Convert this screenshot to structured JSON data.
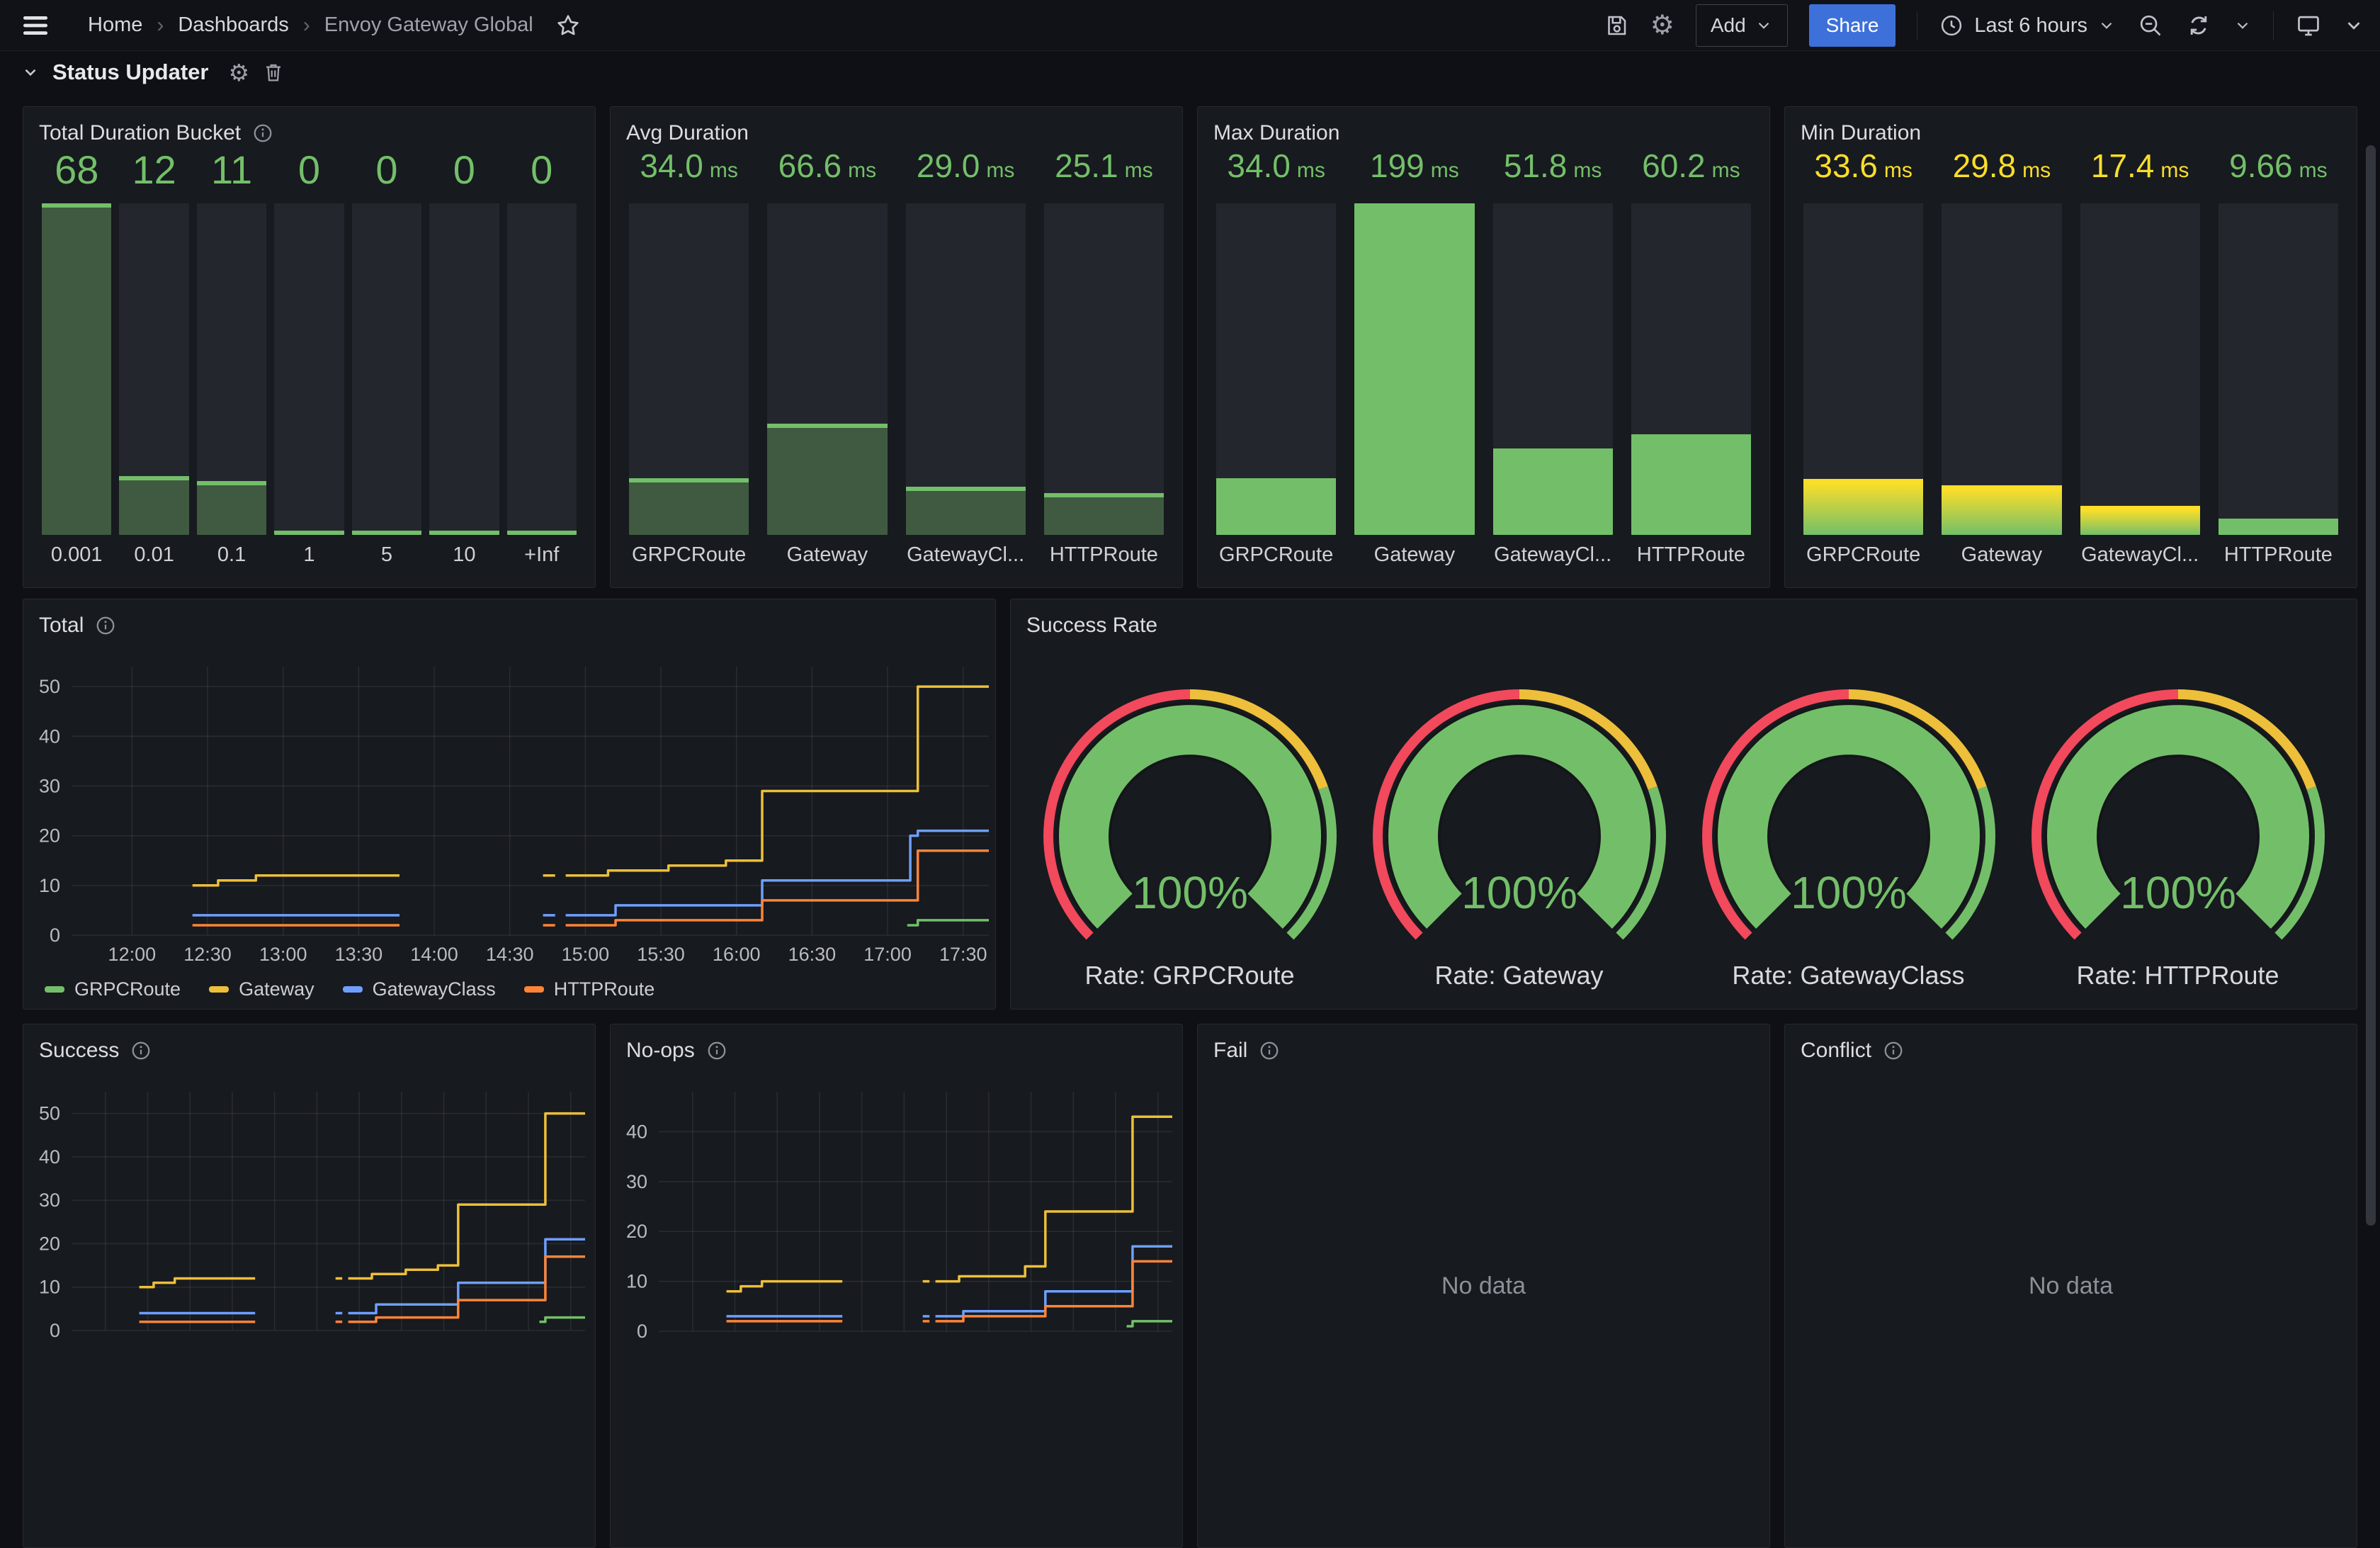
{
  "nav": {
    "breadcrumb": [
      "Home",
      "Dashboards",
      "Envoy Gateway Global"
    ],
    "separator": "›",
    "add": "Add",
    "share": "Share",
    "time_range": "Last 6 hours"
  },
  "row": {
    "title": "Status Updater"
  },
  "panels": {
    "bucket": {
      "title": "Total Duration Bucket"
    },
    "avg": {
      "title": "Avg Duration"
    },
    "max": {
      "title": "Max Duration"
    },
    "min": {
      "title": "Min Duration"
    },
    "total": {
      "title": "Total"
    },
    "rate": {
      "title": "Success Rate"
    },
    "success": {
      "title": "Success"
    },
    "noops": {
      "title": "No-ops"
    },
    "fail": {
      "title": "Fail",
      "no_data": "No data"
    },
    "conflict": {
      "title": "Conflict",
      "no_data": "No data"
    }
  },
  "colors": {
    "green": "#73BF69",
    "dark_green": "#3F5A41",
    "yellow": "#FADE2A",
    "gold": "#EDBF3A",
    "blue": "#6E9FFF",
    "orange": "#FF8438",
    "red": "#F2495C",
    "grid": "rgba(204,204,220,0.10)",
    "tick": "#b9bbc2",
    "accent_button": "#3D71D9"
  },
  "chart_data": [
    {
      "id": "bucket",
      "type": "bar",
      "title": "Total Duration Bucket",
      "categories": [
        "0.001",
        "0.01",
        "0.1",
        "1",
        "5",
        "10",
        "+Inf"
      ],
      "values": [
        68,
        12,
        11,
        0,
        0,
        0,
        0
      ],
      "display": [
        "68",
        "12",
        "11",
        "0",
        "0",
        "0",
        "0"
      ],
      "unit": "",
      "max": 68,
      "ylim": [
        0,
        68
      ],
      "styles": [
        "dark",
        "dark",
        "dark",
        "dark",
        "dark",
        "dark",
        "dark"
      ],
      "value_colors": [
        "green",
        "green",
        "green",
        "green",
        "green",
        "green",
        "green"
      ]
    },
    {
      "id": "avg",
      "type": "bar",
      "title": "Avg Duration",
      "categories": [
        "GRPCRoute",
        "Gateway",
        "GatewayCl...",
        "HTTPRoute"
      ],
      "values": [
        34.0,
        66.6,
        29.0,
        25.1
      ],
      "display": [
        "34.0",
        "66.6",
        "29.0",
        "25.1"
      ],
      "unit": "ms",
      "max": 199,
      "ylim": [
        0,
        199
      ],
      "styles": [
        "dark",
        "dark",
        "dark",
        "dark"
      ],
      "value_colors": [
        "green",
        "green",
        "green",
        "green"
      ]
    },
    {
      "id": "max",
      "type": "bar",
      "title": "Max Duration",
      "categories": [
        "GRPCRoute",
        "Gateway",
        "GatewayCl...",
        "HTTPRoute"
      ],
      "values": [
        34.0,
        199,
        51.8,
        60.2
      ],
      "display": [
        "34.0",
        "199",
        "51.8",
        "60.2"
      ],
      "unit": "ms",
      "max": 199,
      "ylim": [
        0,
        199
      ],
      "styles": [
        "solid",
        "solid",
        "solid",
        "solid"
      ],
      "value_colors": [
        "green",
        "green",
        "green",
        "green"
      ]
    },
    {
      "id": "min",
      "type": "bar",
      "title": "Min Duration",
      "categories": [
        "GRPCRoute",
        "Gateway",
        "GatewayCl...",
        "HTTPRoute"
      ],
      "values": [
        33.6,
        29.8,
        17.4,
        9.66
      ],
      "display": [
        "33.6",
        "29.8",
        "17.4",
        "9.66"
      ],
      "unit": "ms",
      "max": 199,
      "ylim": [
        0,
        199
      ],
      "styles": [
        "gradient",
        "gradient",
        "gradient",
        "solid"
      ],
      "value_colors": [
        "yellow",
        "yellow",
        "yellow",
        "green"
      ]
    },
    {
      "id": "total",
      "type": "line",
      "title": "Total",
      "x_range": [
        11.6,
        17.67
      ],
      "y_range": [
        0,
        54
      ],
      "y_ticks": [
        0,
        10,
        20,
        30,
        40,
        50
      ],
      "x_ticks": [
        {
          "t": 12.0,
          "label": "12:00"
        },
        {
          "t": 12.5,
          "label": "12:30"
        },
        {
          "t": 13.0,
          "label": "13:00"
        },
        {
          "t": 13.5,
          "label": "13:30"
        },
        {
          "t": 14.0,
          "label": "14:00"
        },
        {
          "t": 14.5,
          "label": "14:30"
        },
        {
          "t": 15.0,
          "label": "15:00"
        },
        {
          "t": 15.5,
          "label": "15:30"
        },
        {
          "t": 16.0,
          "label": "16:00"
        },
        {
          "t": 16.5,
          "label": "16:30"
        },
        {
          "t": 17.0,
          "label": "17:00"
        },
        {
          "t": 17.5,
          "label": "17:30"
        }
      ],
      "show_x_labels": true,
      "legend": true,
      "legend_position": "bottom",
      "series": [
        {
          "name": "GRPCRoute",
          "color": "green",
          "segments": [
            [
              [
                17.13,
                2
              ],
              [
                17.2,
                3
              ],
              [
                17.67,
                3
              ]
            ]
          ]
        },
        {
          "name": "Gateway",
          "color": "gold",
          "segments": [
            [
              [
                12.4,
                10
              ],
              [
                12.57,
                11
              ],
              [
                12.82,
                12
              ],
              [
                13.77,
                12
              ]
            ],
            [
              [
                14.72,
                12
              ],
              [
                14.8,
                12
              ]
            ],
            [
              [
                14.87,
                12
              ],
              [
                15.15,
                13
              ],
              [
                15.55,
                14
              ],
              [
                15.93,
                15
              ],
              [
                16.17,
                29
              ],
              [
                17.2,
                50
              ],
              [
                17.67,
                50
              ]
            ]
          ]
        },
        {
          "name": "GatewayClass",
          "color": "blue",
          "segments": [
            [
              [
                12.4,
                4
              ],
              [
                13.77,
                4
              ]
            ],
            [
              [
                14.72,
                4
              ],
              [
                14.8,
                4
              ]
            ],
            [
              [
                14.87,
                4
              ],
              [
                15.2,
                6
              ],
              [
                16.17,
                11
              ],
              [
                17.15,
                20
              ],
              [
                17.2,
                21
              ],
              [
                17.67,
                21
              ]
            ]
          ]
        },
        {
          "name": "HTTPRoute",
          "color": "orange",
          "segments": [
            [
              [
                12.4,
                2
              ],
              [
                13.77,
                2
              ]
            ],
            [
              [
                14.72,
                2
              ],
              [
                14.8,
                2
              ]
            ],
            [
              [
                14.87,
                2
              ],
              [
                15.2,
                3
              ],
              [
                16.17,
                7
              ],
              [
                17.2,
                17
              ],
              [
                17.67,
                17
              ]
            ]
          ]
        }
      ]
    },
    {
      "id": "rate",
      "type": "gauge",
      "title": "Success Rate",
      "values": [
        100,
        100,
        100,
        100
      ],
      "display": [
        "100%",
        "100%",
        "100%",
        "100%"
      ],
      "labels": [
        "Rate: GRPCRoute",
        "Rate: Gateway",
        "Rate: GatewayClass",
        "Rate: HTTPRoute"
      ],
      "thresholds": [
        {
          "color": "red",
          "to": 0.5
        },
        {
          "color": "gold",
          "to": 0.76
        },
        {
          "color": "green",
          "to": 1
        }
      ]
    },
    {
      "id": "success",
      "type": "line",
      "title": "Success",
      "x_range": [
        11.6,
        17.67
      ],
      "y_range": [
        0,
        55
      ],
      "y_ticks": [
        0,
        10,
        20,
        30,
        40,
        50
      ],
      "x_ticks": [
        {
          "t": 12.0,
          "label": "12:00"
        },
        {
          "t": 12.5,
          "label": "12:30"
        },
        {
          "t": 13.0,
          "label": "13:00"
        },
        {
          "t": 13.5,
          "label": "13:30"
        },
        {
          "t": 14.0,
          "label": "14:00"
        },
        {
          "t": 14.5,
          "label": "14:30"
        },
        {
          "t": 15.0,
          "label": "15:00"
        },
        {
          "t": 15.5,
          "label": "15:30"
        },
        {
          "t": 16.0,
          "label": "16:00"
        },
        {
          "t": 16.5,
          "label": "16:30"
        },
        {
          "t": 17.0,
          "label": "17:00"
        },
        {
          "t": 17.5,
          "label": "17:30"
        }
      ],
      "show_x_labels": false,
      "legend": false,
      "series": [
        {
          "name": "GRPCRoute",
          "color": "green",
          "segments": [
            [
              [
                17.13,
                2
              ],
              [
                17.2,
                3
              ],
              [
                17.67,
                3
              ]
            ]
          ]
        },
        {
          "name": "Gateway",
          "color": "gold",
          "segments": [
            [
              [
                12.4,
                10
              ],
              [
                12.57,
                11
              ],
              [
                12.82,
                12
              ],
              [
                13.77,
                12
              ]
            ],
            [
              [
                14.72,
                12
              ],
              [
                14.8,
                12
              ]
            ],
            [
              [
                14.87,
                12
              ],
              [
                15.15,
                13
              ],
              [
                15.55,
                14
              ],
              [
                15.93,
                15
              ],
              [
                16.17,
                29
              ],
              [
                17.2,
                50
              ],
              [
                17.67,
                50
              ]
            ]
          ]
        },
        {
          "name": "GatewayClass",
          "color": "blue",
          "segments": [
            [
              [
                12.4,
                4
              ],
              [
                13.77,
                4
              ]
            ],
            [
              [
                14.72,
                4
              ],
              [
                14.8,
                4
              ]
            ],
            [
              [
                14.87,
                4
              ],
              [
                15.2,
                6
              ],
              [
                16.17,
                11
              ],
              [
                17.2,
                21
              ],
              [
                17.67,
                21
              ]
            ]
          ]
        },
        {
          "name": "HTTPRoute",
          "color": "orange",
          "segments": [
            [
              [
                12.4,
                2
              ],
              [
                13.77,
                2
              ]
            ],
            [
              [
                14.72,
                2
              ],
              [
                14.8,
                2
              ]
            ],
            [
              [
                14.87,
                2
              ],
              [
                15.2,
                3
              ],
              [
                16.17,
                7
              ],
              [
                17.2,
                17
              ],
              [
                17.67,
                17
              ]
            ]
          ]
        }
      ]
    },
    {
      "id": "noops",
      "type": "line",
      "title": "No-ops",
      "x_range": [
        11.6,
        17.67
      ],
      "y_range": [
        0,
        48
      ],
      "y_ticks": [
        0,
        10,
        20,
        30,
        40
      ],
      "x_ticks": [
        {
          "t": 12.0,
          "label": "12:00"
        },
        {
          "t": 12.5,
          "label": "12:30"
        },
        {
          "t": 13.0,
          "label": "13:00"
        },
        {
          "t": 13.5,
          "label": "13:30"
        },
        {
          "t": 14.0,
          "label": "14:00"
        },
        {
          "t": 14.5,
          "label": "14:30"
        },
        {
          "t": 15.0,
          "label": "15:00"
        },
        {
          "t": 15.5,
          "label": "15:30"
        },
        {
          "t": 16.0,
          "label": "16:00"
        },
        {
          "t": 16.5,
          "label": "16:30"
        },
        {
          "t": 17.0,
          "label": "17:00"
        },
        {
          "t": 17.5,
          "label": "17:30"
        }
      ],
      "show_x_labels": false,
      "legend": false,
      "series": [
        {
          "name": "GRPCRoute",
          "color": "green",
          "segments": [
            [
              [
                17.13,
                1
              ],
              [
                17.2,
                2
              ],
              [
                17.67,
                2
              ]
            ]
          ]
        },
        {
          "name": "Gateway",
          "color": "gold",
          "segments": [
            [
              [
                12.4,
                8
              ],
              [
                12.57,
                9
              ],
              [
                12.82,
                10
              ],
              [
                13.77,
                10
              ]
            ],
            [
              [
                14.72,
                10
              ],
              [
                14.8,
                10
              ]
            ],
            [
              [
                14.87,
                10
              ],
              [
                15.15,
                11
              ],
              [
                15.93,
                13
              ],
              [
                16.17,
                24
              ],
              [
                17.2,
                43
              ],
              [
                17.67,
                43
              ]
            ]
          ]
        },
        {
          "name": "GatewayClass",
          "color": "blue",
          "segments": [
            [
              [
                12.4,
                3
              ],
              [
                13.77,
                3
              ]
            ],
            [
              [
                14.72,
                3
              ],
              [
                14.8,
                3
              ]
            ],
            [
              [
                14.87,
                3
              ],
              [
                15.2,
                4
              ],
              [
                16.17,
                8
              ],
              [
                17.2,
                17
              ],
              [
                17.67,
                17
              ]
            ]
          ]
        },
        {
          "name": "HTTPRoute",
          "color": "orange",
          "segments": [
            [
              [
                12.4,
                2
              ],
              [
                13.77,
                2
              ]
            ],
            [
              [
                14.72,
                2
              ],
              [
                14.8,
                2
              ]
            ],
            [
              [
                14.87,
                2
              ],
              [
                15.2,
                3
              ],
              [
                16.17,
                5
              ],
              [
                17.2,
                14
              ],
              [
                17.67,
                14
              ]
            ]
          ]
        }
      ]
    }
  ]
}
